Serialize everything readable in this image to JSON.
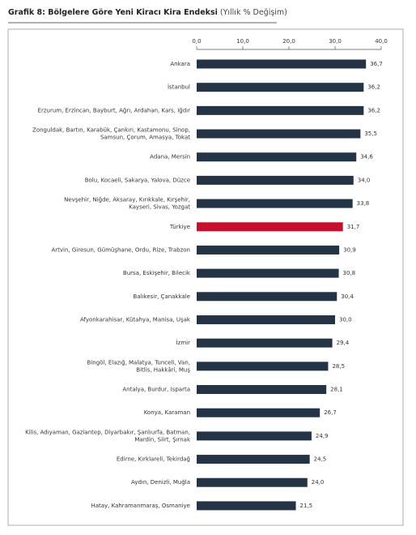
{
  "chart_data": {
    "type": "barh",
    "title": "Grafik 8: Bölgelere Göre Yeni Kiracı Kira Endeksi",
    "subtitle": "(Yıllık % Değişim)",
    "categories": [
      "Ankara",
      "İstanbul",
      "Erzurum, Erzincan, Bayburt, Ağrı, Ardahan, Kars, Iğdır",
      "Zonguldak, Bartın, Karabük, Çankırı, Kastamonu, Sinop,\nSamsun, Çorum, Amasya, Tokat",
      "Adana, Mersin",
      "Bolu, Kocaeli, Sakarya, Yalova, Düzce",
      "Nevşehir, Niğde, Aksaray, Kırıkkale, Kırşehir,\nKayseri, Sivas, Yozgat",
      "Türkiye",
      "Artvin, Giresun, Gümüşhane, Ordu, Rize, Trabzon",
      "Bursa, Eskişehir, Bilecik",
      "Balıkesir, Çanakkale",
      "Afyonkarahisar, Kütahya, Manisa, Uşak",
      "İzmir",
      "Bingöl, Elazığ, Malatya, Tunceli, Van,\nBitlis, Hakkâri, Muş",
      "Antalya, Burdur, Isparta",
      "Konya, Karaman",
      "Kilis, Adıyaman, Gaziantep, Diyarbakır, Şanlıurfa, Batman,\nMardin, Siirt, Şırnak",
      "Edirne, Kırklareli, Tekirdağ",
      "Aydın, Denizli, Muğla",
      "Hatay, Kahramanmaraş, Osmaniye"
    ],
    "values": [
      36.7,
      36.2,
      36.2,
      35.5,
      34.6,
      34.0,
      33.8,
      31.7,
      30.9,
      30.8,
      30.4,
      30.0,
      29.4,
      28.5,
      28.1,
      26.7,
      24.9,
      24.5,
      24.0,
      21.5
    ],
    "value_labels": [
      "36,7",
      "36,2",
      "36,2",
      "35,5",
      "34,6",
      "34,0",
      "33,8",
      "31,7",
      "30,9",
      "30,8",
      "30,4",
      "30,0",
      "29,4",
      "28,5",
      "28,1",
      "26,7",
      "24,9",
      "24,5",
      "24,0",
      "21,5"
    ],
    "colors": [
      "#233447",
      "#233447",
      "#233447",
      "#233447",
      "#233447",
      "#233447",
      "#233447",
      "#c8102e",
      "#233447",
      "#233447",
      "#233447",
      "#233447",
      "#233447",
      "#233447",
      "#233447",
      "#233447",
      "#233447",
      "#233447",
      "#233447",
      "#233447"
    ],
    "xlim": [
      0,
      40
    ],
    "xticks": [
      {
        "value": 0,
        "label": "0,0"
      },
      {
        "value": 10,
        "label": "10,0"
      },
      {
        "value": 20,
        "label": "20,0"
      },
      {
        "value": 30,
        "label": "30,0"
      },
      {
        "value": 40,
        "label": "40,0"
      }
    ]
  }
}
